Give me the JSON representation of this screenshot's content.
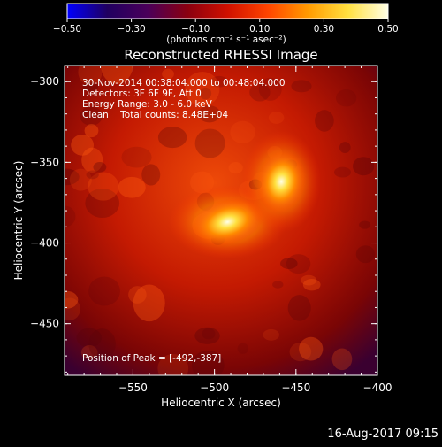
{
  "colorbar": {
    "tick_labels": [
      "−0.50",
      "−0.30",
      "−0.10",
      "0.10",
      "0.30",
      "0.50"
    ],
    "unit_label": "(photons cm⁻² s⁻¹ asec⁻²)",
    "range": [
      -0.5,
      0.5
    ],
    "colors": [
      "#0000ff",
      "#200060",
      "#4a005a",
      "#8a0010",
      "#d01000",
      "#ff4400",
      "#ff9a00",
      "#ffe040",
      "#ffffe6"
    ]
  },
  "annotations": {
    "time": "30-Nov-2014 00:38:04.000 to 00:48:04.000",
    "detectors": "Detectors: 3F 6F 9F, Att 0",
    "energy": "Energy Range: 3.0 - 6.0 keV",
    "clean": "Clean    Total counts: 8.48E+04",
    "peak": "Position of Peak = [-492,-387]"
  },
  "footer": {
    "date": "16-Aug-2017 09:15"
  },
  "chart_data": {
    "type": "heatmap",
    "title": "Reconstructed RHESSI Image",
    "xlabel": "Heliocentric X (arcsec)",
    "ylabel": "Heliocentric Y (arcsec)",
    "xlim": [
      -592,
      -400
    ],
    "ylim": [
      -482,
      -290
    ],
    "x_ticks": [
      -550,
      -500,
      -450,
      -400
    ],
    "x_tick_labels": [
      "−550",
      "−500",
      "−450",
      "−400"
    ],
    "y_ticks": [
      -300,
      -350,
      -400,
      -450
    ],
    "y_tick_labels": [
      "−300",
      "−350",
      "−400",
      "−450"
    ],
    "sources": [
      {
        "x": -492,
        "y": -387,
        "peak": 0.5
      },
      {
        "x": -459,
        "y": -362,
        "peak": 0.45
      }
    ],
    "peak_position": [
      -492,
      -387
    ]
  }
}
